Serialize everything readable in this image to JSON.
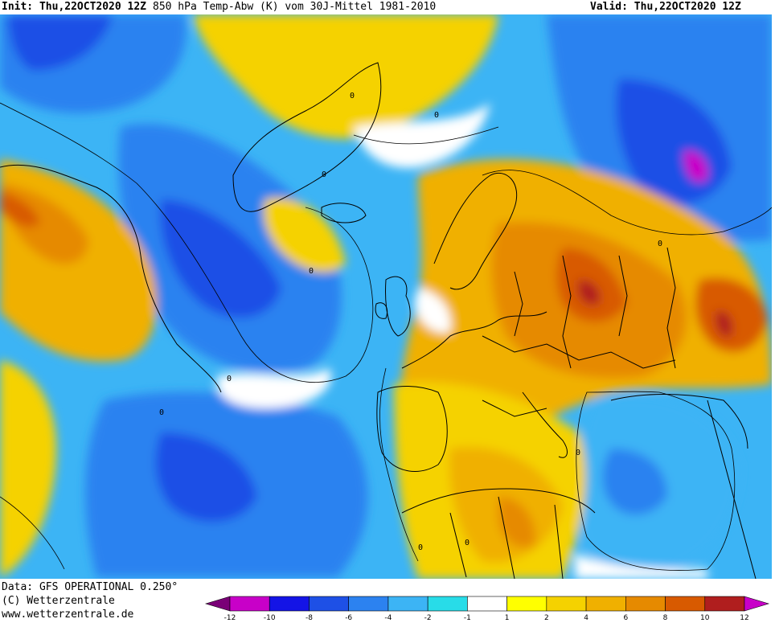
{
  "header": {
    "init": "Init: Thu,22OCT2020 12Z",
    "title": "850 hPa Temp-Abw (K) vom 30J-Mittel 1981-2010",
    "valid": "Valid: Thu,22OCT2020 12Z"
  },
  "footer": {
    "line1": "Data: GFS OPERATIONAL 0.250°",
    "line2": "(C) Wetterzentrale",
    "line3": "www.wetterzentrale.de"
  },
  "legend": {
    "ticks": [
      "-12",
      "-10",
      "-8",
      "-6",
      "-4",
      "-2",
      "-1",
      "1",
      "2",
      "4",
      "6",
      "8",
      "10",
      "12"
    ],
    "colors": [
      "#7a0077",
      "#c800c8",
      "#1414e6",
      "#1e50e6",
      "#2c82f0",
      "#3cb4f5",
      "#28dce8",
      "#ffffff",
      "#ffff00",
      "#f5d200",
      "#f0b000",
      "#e68a00",
      "#d85a00",
      "#b01e1e",
      "#c800c8"
    ]
  },
  "map": {
    "region": "North Atlantic and Europe",
    "contour_labels": [
      "0",
      "0",
      "0",
      "0",
      "0",
      "0",
      "0",
      "0",
      "0",
      "0",
      "0"
    ]
  }
}
